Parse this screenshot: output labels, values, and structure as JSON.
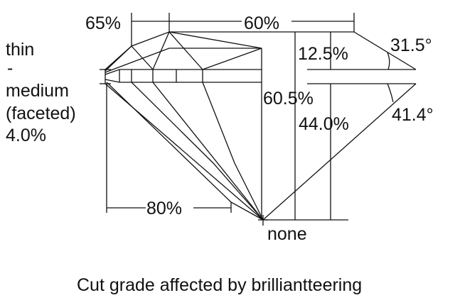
{
  "labels": {
    "crown_diameter": "65%",
    "table": "60%",
    "girdle_thin": "thin",
    "girdle_dash": "-",
    "girdle_medium": "medium",
    "girdle_faceted": "(faceted)",
    "girdle_percent": "4.0%",
    "crown_height": "12.5%",
    "crown_angle": "31.5°",
    "total_depth": "60.5%",
    "pavilion_depth": "44.0%",
    "pavilion_angle": "41.4°",
    "lower_half": "80%",
    "culet": "none"
  },
  "caption": "Cut grade affected by brilliantteering"
}
